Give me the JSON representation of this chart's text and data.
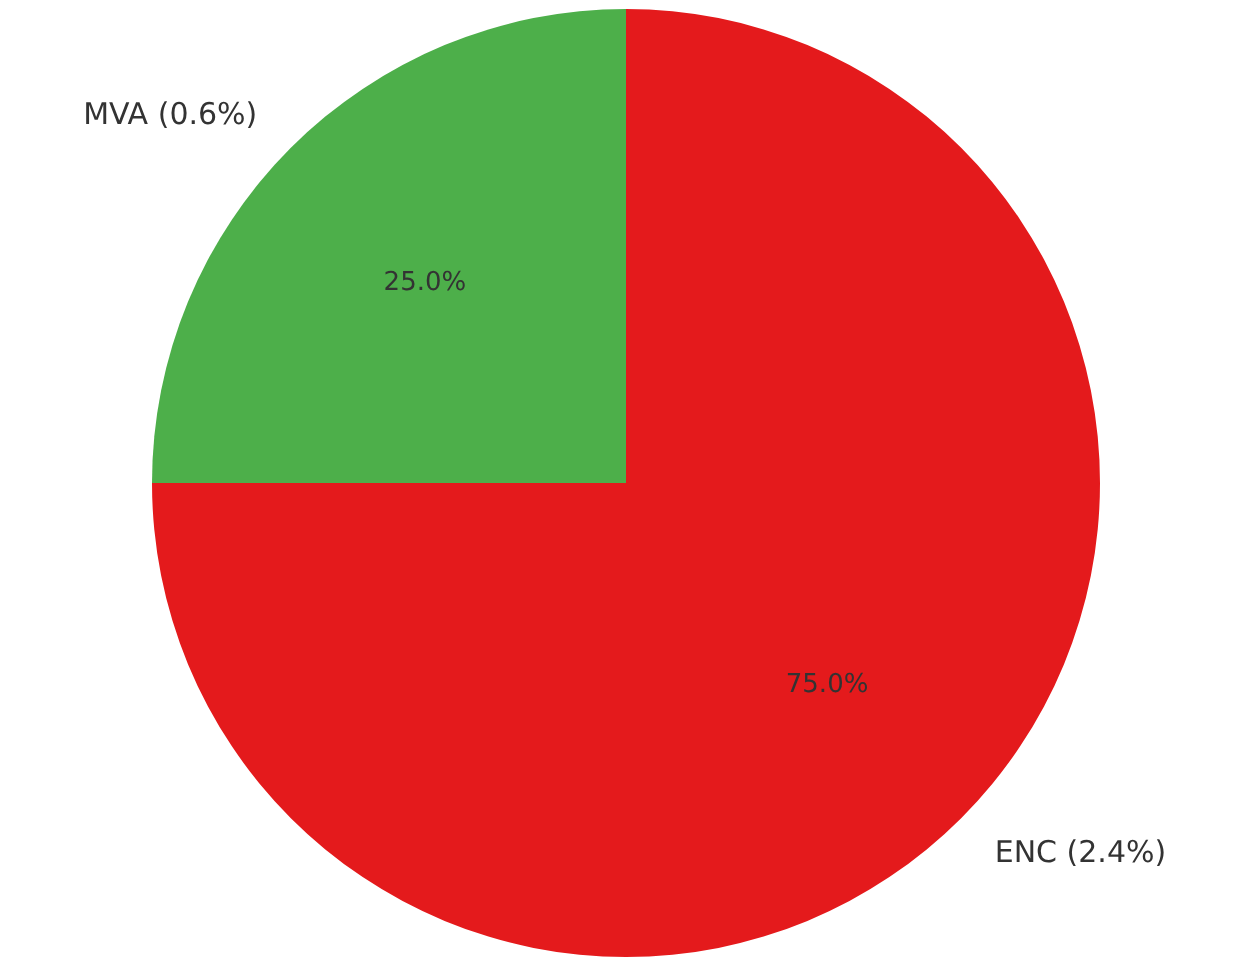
{
  "chart_data": {
    "type": "pie",
    "categories": [
      "ENC (2.4%)",
      "MVA (0.6%)"
    ],
    "values": [
      75,
      25
    ],
    "colors": [
      "#e41a1c",
      "#4daf4a"
    ],
    "value_labels": [
      "75.0%",
      "25.0%"
    ]
  }
}
